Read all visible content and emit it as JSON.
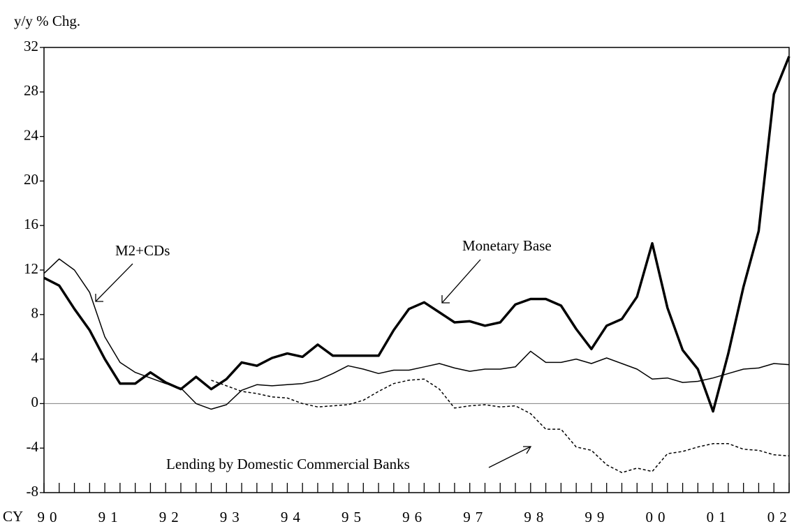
{
  "chart_data": {
    "type": "line",
    "y_label": "y/y % Chg.",
    "x_label": "CY",
    "categories": [
      "90",
      null,
      null,
      null,
      "91",
      null,
      null,
      null,
      "92",
      null,
      null,
      null,
      "93",
      null,
      null,
      null,
      "94",
      null,
      null,
      null,
      "95",
      null,
      null,
      null,
      "96",
      null,
      null,
      null,
      "97",
      null,
      null,
      null,
      "98",
      null,
      null,
      null,
      "99",
      null,
      null,
      null,
      "00",
      null,
      null,
      null,
      "01",
      null,
      null,
      null,
      "02",
      null
    ],
    "ylim": [
      -8,
      32
    ],
    "yticks": [
      -8,
      -4,
      0,
      4,
      8,
      12,
      16,
      20,
      24,
      28,
      32
    ],
    "negative_tick_color": "#ff0000",
    "zero_line": true,
    "series": [
      {
        "name": "Monetary Base",
        "color": "#000000",
        "line_width": 3.5,
        "dashed": false,
        "values": [
          11.3,
          10.6,
          8.5,
          6.6,
          4.0,
          1.8,
          1.8,
          2.8,
          1.9,
          1.3,
          2.4,
          1.3,
          2.2,
          3.7,
          3.4,
          4.1,
          4.5,
          4.2,
          5.3,
          4.3,
          4.3,
          4.3,
          4.3,
          6.6,
          8.5,
          9.1,
          8.2,
          7.3,
          7.4,
          7.0,
          7.3,
          8.9,
          9.4,
          9.4,
          8.8,
          6.7,
          4.9,
          7.0,
          7.6,
          9.6,
          14.4,
          8.6,
          4.8,
          3.1,
          -0.7,
          4.5,
          10.5,
          15.5,
          27.8,
          31.2
        ]
      },
      {
        "name": "M2+CDs",
        "color": "#000000",
        "line_width": 1.5,
        "dashed": false,
        "values": [
          11.7,
          13.0,
          12.0,
          10.0,
          6.0,
          3.7,
          2.8,
          2.3,
          1.8,
          1.4,
          0.0,
          -0.5,
          -0.1,
          1.2,
          1.7,
          1.6,
          1.7,
          1.8,
          2.1,
          2.7,
          3.4,
          3.1,
          2.7,
          3.0,
          3.0,
          3.3,
          3.6,
          3.2,
          2.9,
          3.1,
          3.1,
          3.3,
          4.7,
          3.7,
          3.7,
          4.0,
          3.6,
          4.1,
          3.6,
          3.1,
          2.2,
          2.3,
          1.9,
          2.0,
          2.3,
          2.7,
          3.1,
          3.2,
          3.6,
          3.5
        ]
      },
      {
        "name": "Lending by Domestic Commercial Banks",
        "color": "#000000",
        "line_width": 1.5,
        "dashed": true,
        "values": [
          null,
          null,
          null,
          null,
          null,
          null,
          null,
          null,
          null,
          null,
          null,
          2.1,
          1.6,
          1.1,
          0.9,
          0.6,
          0.5,
          0.0,
          -0.3,
          -0.2,
          -0.1,
          0.3,
          1.1,
          1.8,
          2.1,
          2.2,
          1.3,
          -0.4,
          -0.2,
          -0.1,
          -0.3,
          -0.2,
          -0.9,
          -2.3,
          -2.3,
          -3.9,
          -4.2,
          -5.5,
          -6.2,
          -5.8,
          -6.1,
          -4.5,
          -4.3,
          -3.9,
          -3.6,
          -3.6,
          -4.1,
          -4.2,
          -4.6,
          -4.7
        ]
      }
    ]
  }
}
